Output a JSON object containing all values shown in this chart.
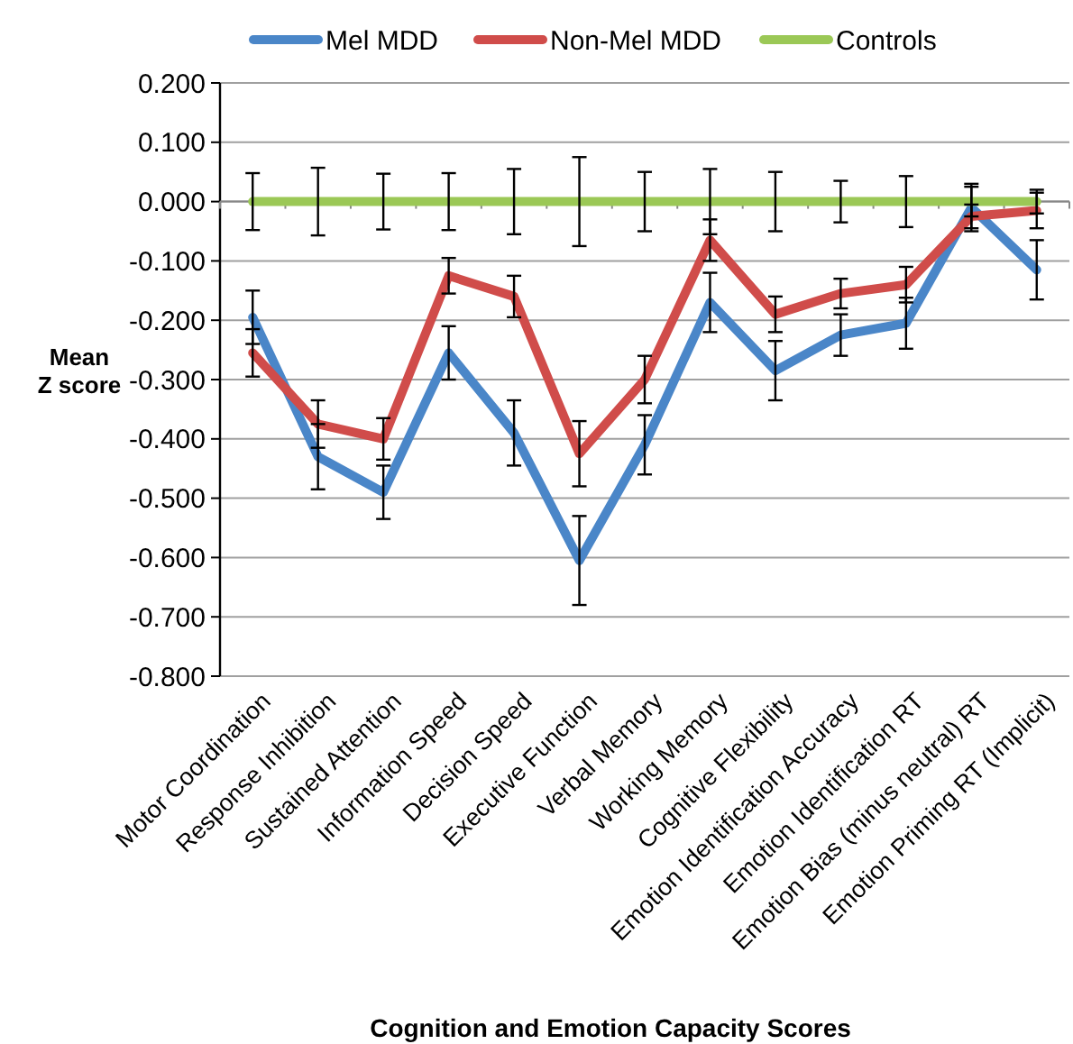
{
  "chart_data": {
    "type": "line",
    "xlabel": "Cognition and Emotion Capacity Scores",
    "ylabel": "Mean Z score",
    "categories": [
      "Motor Coordination",
      "Response Inhibition",
      "Sustained Attention",
      "Information Speed",
      "Decision Speed",
      "Executive Function",
      "Verbal Memory",
      "Working Memory",
      "Cognitive Flexibility",
      "Emotion Identification Accuracy",
      "Emotion Identification RT",
      "Emotion Bias (minus neutral) RT",
      "Emotion Priming RT (Implicit)"
    ],
    "series": [
      {
        "name": "Mel MDD",
        "color": "#4a86c8",
        "values": [
          -0.195,
          -0.43,
          -0.49,
          -0.255,
          -0.39,
          -0.605,
          -0.41,
          -0.17,
          -0.285,
          -0.225,
          -0.205,
          -0.01,
          -0.115
        ],
        "errors": [
          0.045,
          0.055,
          0.045,
          0.045,
          0.055,
          0.075,
          0.05,
          0.05,
          0.05,
          0.035,
          0.043,
          0.04,
          0.05
        ]
      },
      {
        "name": "Non-Mel MDD",
        "color": "#d04c4a",
        "values": [
          -0.255,
          -0.375,
          -0.4,
          -0.125,
          -0.16,
          -0.425,
          -0.3,
          -0.065,
          -0.19,
          -0.155,
          -0.14,
          -0.025,
          -0.015
        ],
        "errors": [
          0.04,
          0.04,
          0.035,
          0.03,
          0.035,
          0.055,
          0.04,
          0.035,
          0.03,
          0.025,
          0.03,
          0.02,
          0.03
        ]
      },
      {
        "name": "Controls",
        "color": "#9bc856",
        "values": [
          0,
          0,
          0,
          0,
          0,
          0,
          0,
          0,
          0,
          0,
          0,
          0,
          0
        ],
        "errors": [
          0.048,
          0.057,
          0.047,
          0.048,
          0.055,
          0.075,
          0.05,
          0.055,
          0.05,
          0.035,
          0.043,
          0.025,
          0.02
        ]
      }
    ],
    "ylim": [
      -0.8,
      0.2
    ],
    "yticks": [
      {
        "value": 0.2,
        "label": "0.200"
      },
      {
        "value": 0.1,
        "label": "0.100"
      },
      {
        "value": 0,
        "label": "0.000"
      },
      {
        "value": -0.1,
        "label": "-0.100"
      },
      {
        "value": -0.2,
        "label": "-0.200"
      },
      {
        "value": -0.3,
        "label": "-0.300"
      },
      {
        "value": -0.4,
        "label": "-0.400"
      },
      {
        "value": -0.5,
        "label": "-0.500"
      },
      {
        "value": -0.6,
        "label": "-0.600"
      },
      {
        "value": -0.7,
        "label": "-0.700"
      },
      {
        "value": -0.8,
        "label": "-0.800"
      }
    ],
    "grid": "y",
    "legend": "top",
    "marker": "none",
    "line_style": "solid"
  }
}
